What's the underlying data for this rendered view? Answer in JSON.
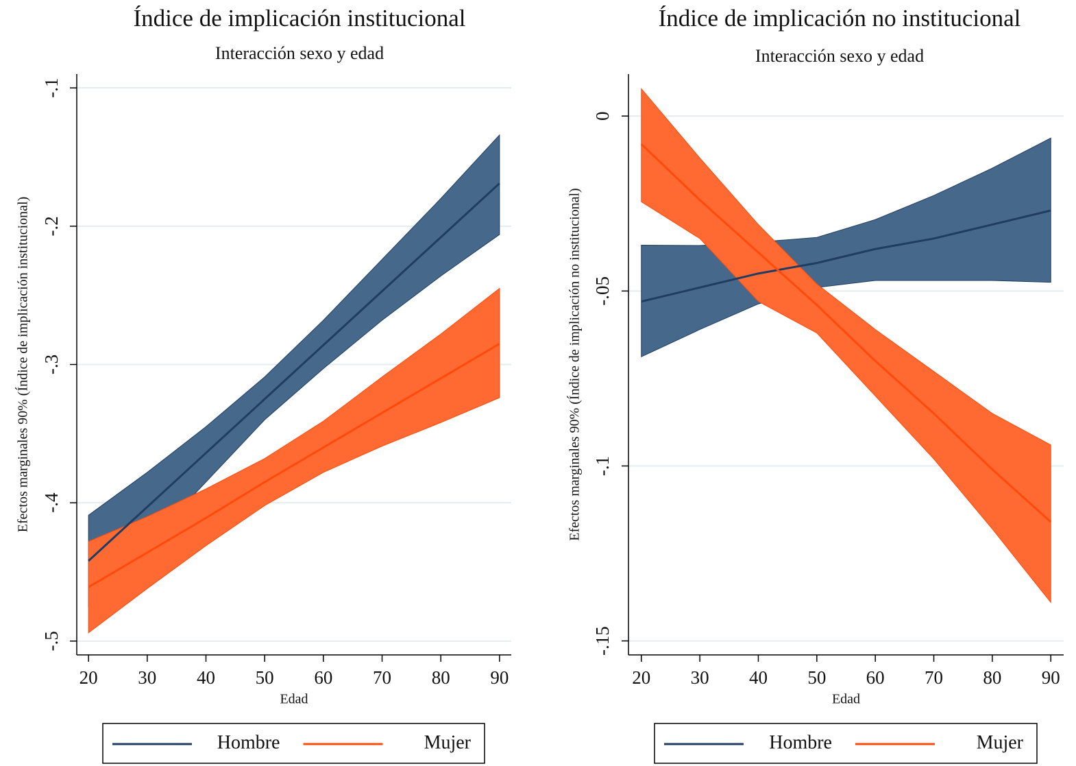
{
  "chart_data": [
    {
      "type": "line",
      "title": "Índice de implicación institucional",
      "subtitle": "Interacción sexo y edad",
      "x_label": "Edad",
      "y_label": "Efectos marginales 90% (Índice de implicación institucional)",
      "x": [
        20,
        30,
        40,
        50,
        60,
        70,
        80,
        90
      ],
      "xlim": [
        18,
        92
      ],
      "xticks": [
        20,
        30,
        40,
        50,
        60,
        70,
        80,
        90
      ],
      "ylim": [
        -0.51,
        -0.09
      ],
      "yticks": [
        {
          "value": -0.5,
          "label": "-.5"
        },
        {
          "value": -0.4,
          "label": "-.4"
        },
        {
          "value": -0.3,
          "label": "-.3"
        },
        {
          "value": -0.2,
          "label": "-.2"
        },
        {
          "value": -0.1,
          "label": "-.1"
        }
      ],
      "grid": true,
      "series": [
        {
          "name": "Hombre",
          "color": "#1f3d63",
          "band_color": "#46698b",
          "values": [
            -0.442,
            -0.403,
            -0.364,
            -0.325,
            -0.286,
            -0.247,
            -0.208,
            -0.169
          ],
          "lower": [
            -0.475,
            -0.43,
            -0.385,
            -0.34,
            -0.303,
            -0.268,
            -0.236,
            -0.206
          ],
          "upper": [
            -0.409,
            -0.378,
            -0.345,
            -0.309,
            -0.268,
            -0.224,
            -0.18,
            -0.134
          ]
        },
        {
          "name": "Mujer",
          "color": "#ff4a0a",
          "band_color": "#ff6a33",
          "values": [
            -0.461,
            -0.436,
            -0.411,
            -0.385,
            -0.36,
            -0.335,
            -0.31,
            -0.285
          ],
          "lower": [
            -0.494,
            -0.462,
            -0.431,
            -0.402,
            -0.378,
            -0.359,
            -0.342,
            -0.324
          ],
          "upper": [
            -0.428,
            -0.41,
            -0.39,
            -0.368,
            -0.341,
            -0.309,
            -0.278,
            -0.245
          ]
        }
      ]
    },
    {
      "type": "line",
      "title": "Índice de implicación no institucional",
      "subtitle": "Interacción sexo y edad",
      "x_label": "Edad",
      "y_label": "Efectos marginales 90% (Índice de implicación no institucional)",
      "x": [
        20,
        30,
        40,
        50,
        60,
        70,
        80,
        90
      ],
      "xlim": [
        17.8,
        92.2
      ],
      "xticks": [
        20,
        30,
        40,
        50,
        60,
        70,
        80,
        90
      ],
      "ylim": [
        -0.154,
        0.012
      ],
      "yticks": [
        {
          "value": -0.15,
          "label": "-.15"
        },
        {
          "value": -0.1,
          "label": "-.1"
        },
        {
          "value": -0.05,
          "label": "-.05"
        },
        0
      ],
      "grid": true,
      "series": [
        {
          "name": "Hombre",
          "color": "#1f3d63",
          "band_color": "#46698b",
          "values": [
            -0.053,
            -0.049,
            -0.045,
            -0.042,
            -0.038,
            -0.035,
            -0.031,
            -0.027
          ],
          "lower": [
            -0.0688,
            -0.061,
            -0.0537,
            -0.049,
            -0.047,
            -0.047,
            -0.047,
            -0.0475
          ],
          "upper": [
            -0.0369,
            -0.037,
            -0.036,
            -0.0347,
            -0.0296,
            -0.0227,
            -0.0149,
            -0.0063
          ]
        },
        {
          "name": "Mujer",
          "color": "#ff4a0a",
          "band_color": "#ff6a33",
          "values": [
            -0.008,
            -0.024,
            -0.039,
            -0.054,
            -0.07,
            -0.085,
            -0.101,
            -0.116
          ],
          "lower": [
            -0.0245,
            -0.035,
            -0.053,
            -0.062,
            -0.08,
            -0.098,
            -0.118,
            -0.139
          ],
          "upper": [
            0.0078,
            -0.012,
            -0.031,
            -0.048,
            -0.061,
            -0.073,
            -0.085,
            -0.094
          ]
        }
      ]
    }
  ]
}
